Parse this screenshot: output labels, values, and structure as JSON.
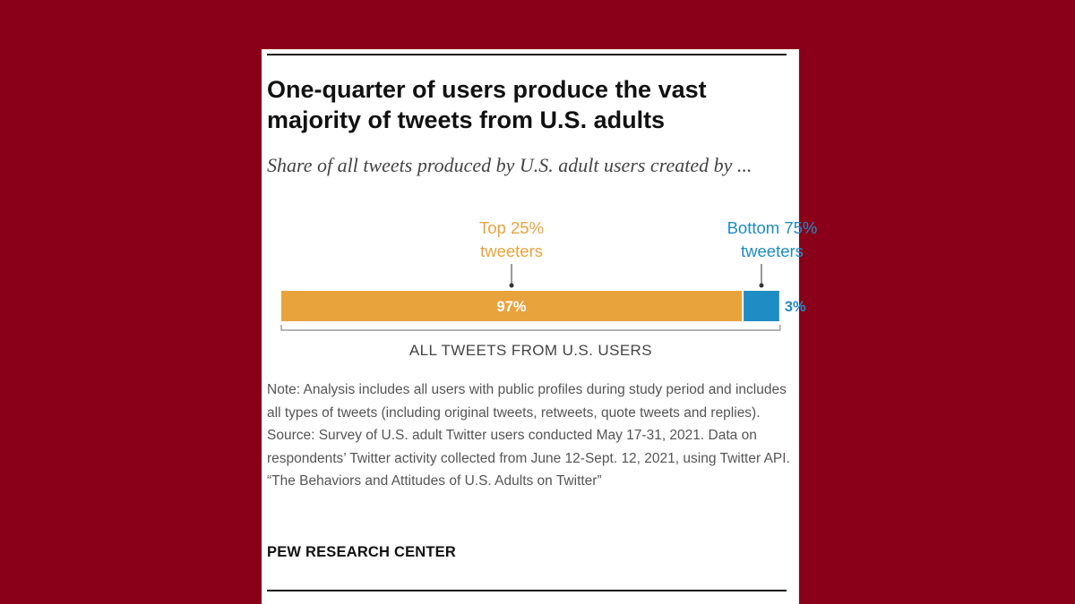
{
  "chart_data": {
    "type": "bar",
    "orientation": "horizontal-stacked",
    "title": "One-quarter of users produce the vast majority of tweets from U.S. adults",
    "subtitle": "Share of all tweets produced by U.S. adult users created by ...",
    "xlabel": "ALL TWEETS FROM U.S. USERS",
    "xlim": [
      0,
      100
    ],
    "series": [
      {
        "name_line1": "Top 25%",
        "name_line2": "tweeters",
        "value": 97,
        "value_label": "97%",
        "color": "#e8a33d"
      },
      {
        "name_line1": "Bottom 75%",
        "name_line2": "tweeters",
        "value": 3,
        "value_label": "3%",
        "color": "#1f8cc4"
      }
    ]
  },
  "notes": {
    "note": "Note: Analysis includes all users with public profiles during study period and includes all types of tweets (including original tweets, retweets, quote tweets and replies).",
    "source": "Source: Survey of U.S. adult Twitter users conducted May 17-31, 2021. Data on respondents’ Twitter activity collected from June 12-Sept. 12, 2021, using Twitter API.",
    "report": "“The Behaviors and Attitudes of U.S. Adults on Twitter”"
  },
  "footer": {
    "logo_text": "PEW RESEARCH CENTER"
  },
  "colors": {
    "background": "#8a0019",
    "card": "#ffffff",
    "top_series": "#e8a33d",
    "bottom_series": "#1f8cc4",
    "bar_label_inside": "#ffffff"
  }
}
